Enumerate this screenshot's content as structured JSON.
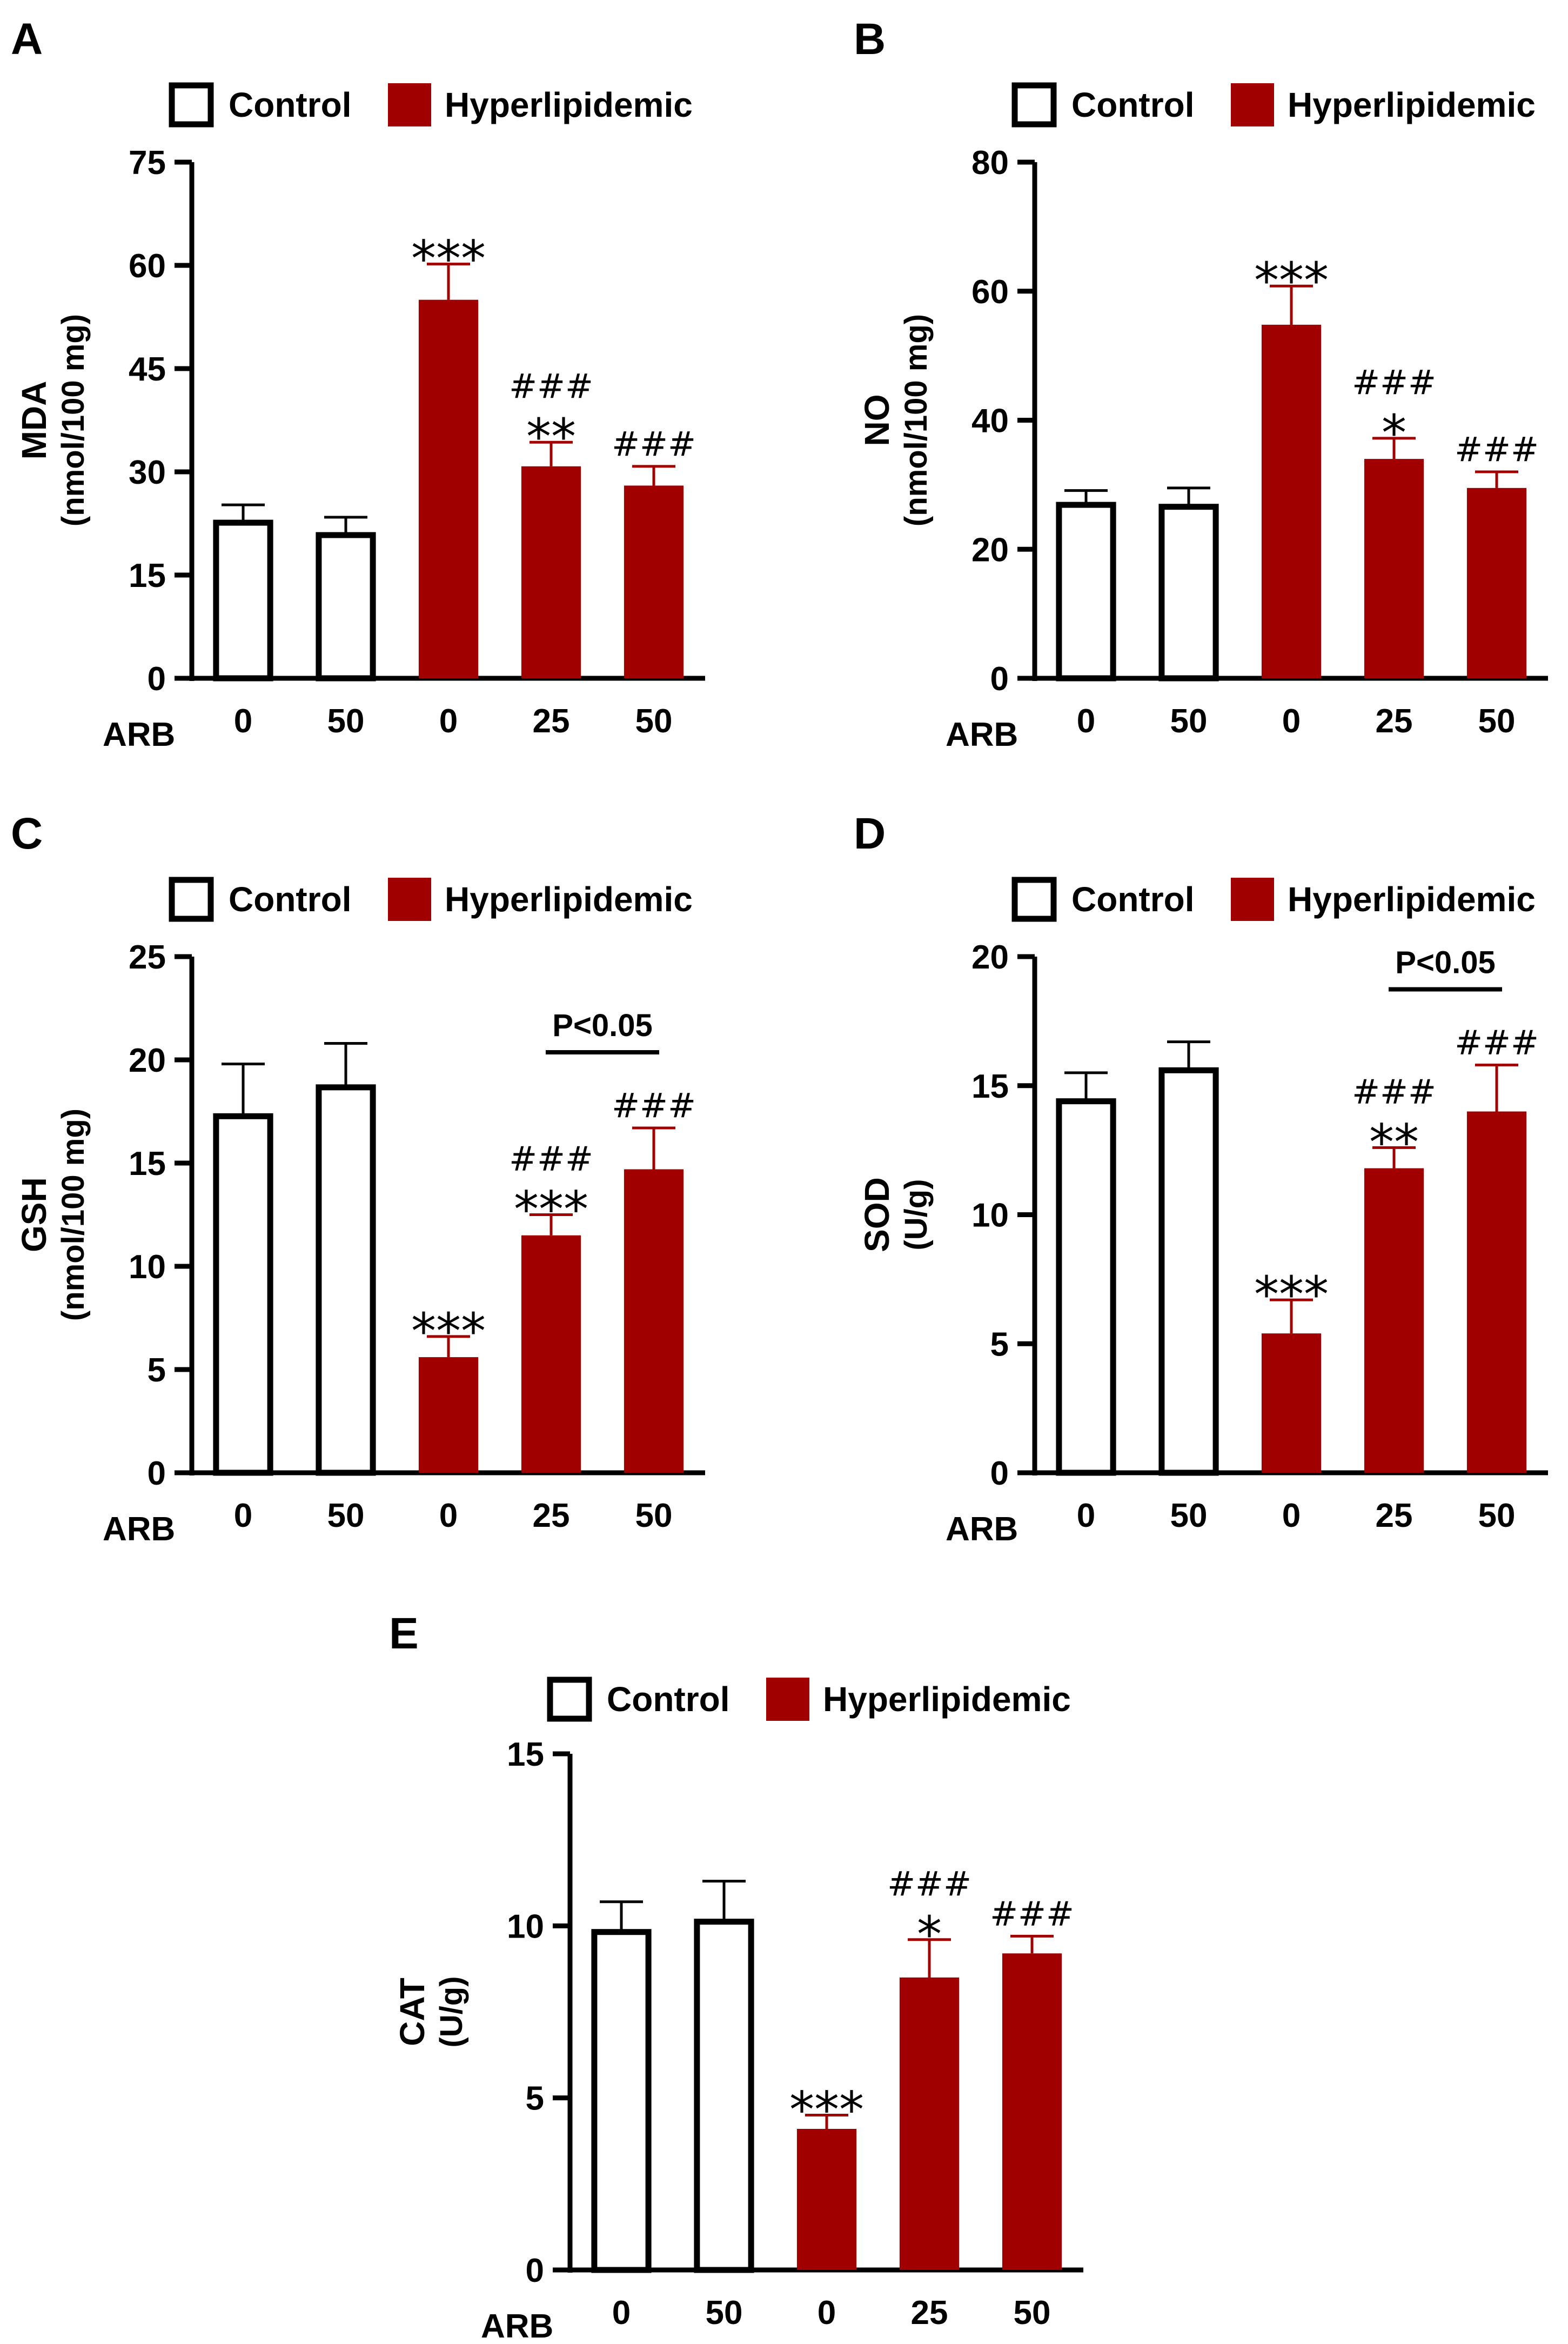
{
  "colors": {
    "control_fill": "#ffffff",
    "hyper_fill": "#a00000",
    "axis": "#000000"
  },
  "chart_data": [
    {
      "panel": "A",
      "type": "bar",
      "legend": [
        "Control",
        "Hyperlipidemic"
      ],
      "ylabel": "MDA",
      "ylabel2": "(nmol/100 mg)",
      "xlabel": "ARB",
      "categories": [
        "0",
        "50",
        "0",
        "25",
        "50"
      ],
      "groups": [
        "Control",
        "Control",
        "Hyperlipidemic",
        "Hyperlipidemic",
        "Hyperlipidemic"
      ],
      "values": [
        23,
        21.2,
        55,
        30.8,
        28
      ],
      "errors": [
        2.2,
        2.2,
        5.2,
        3.5,
        2.8
      ],
      "ylim": [
        0,
        75
      ],
      "yticks": [
        "0",
        "15",
        "30",
        "45",
        "60",
        "75"
      ],
      "significance": [
        [],
        [],
        [
          "***"
        ],
        [
          "**",
          "###"
        ],
        [
          "###"
        ]
      ],
      "bracket": null
    },
    {
      "panel": "B",
      "type": "bar",
      "legend": [
        "Control",
        "Hyperlipidemic"
      ],
      "ylabel": "NO",
      "ylabel2": "(nmol/100 mg)",
      "xlabel": "ARB",
      "categories": [
        "0",
        "50",
        "0",
        "25",
        "50"
      ],
      "groups": [
        "Control",
        "Control",
        "Hyperlipidemic",
        "Hyperlipidemic",
        "Hyperlipidemic"
      ],
      "values": [
        27.3,
        27,
        54.8,
        34,
        29.5
      ],
      "errors": [
        1.8,
        2.5,
        6,
        3.2,
        2.5
      ],
      "ylim": [
        0,
        80
      ],
      "yticks": [
        "0",
        "20",
        "40",
        "60",
        "80"
      ],
      "significance": [
        [],
        [],
        [
          "***"
        ],
        [
          "*",
          "###"
        ],
        [
          "###"
        ]
      ],
      "bracket": null
    },
    {
      "panel": "C",
      "type": "bar",
      "legend": [
        "Control",
        "Hyperlipidemic"
      ],
      "ylabel": "GSH",
      "ylabel2": "(nmol/100 mg)",
      "xlabel": "ARB",
      "categories": [
        "0",
        "50",
        "0",
        "25",
        "50"
      ],
      "groups": [
        "Control",
        "Control",
        "Hyperlipidemic",
        "Hyperlipidemic",
        "Hyperlipidemic"
      ],
      "values": [
        17.4,
        18.8,
        5.6,
        11.5,
        14.7
      ],
      "errors": [
        2.4,
        2,
        1,
        1,
        2
      ],
      "ylim": [
        0,
        25
      ],
      "yticks": [
        "0",
        "5",
        "10",
        "15",
        "20",
        "25"
      ],
      "significance": [
        [],
        [],
        [
          "***"
        ],
        [
          "***",
          "###"
        ],
        [
          "###"
        ]
      ],
      "bracket": {
        "from": 3,
        "to": 4,
        "label": "P<0.05"
      }
    },
    {
      "panel": "D",
      "type": "bar",
      "legend": [
        "Control",
        "Hyperlipidemic"
      ],
      "ylabel": "SOD",
      "ylabel2": "(U/g)",
      "xlabel": "ARB",
      "categories": [
        "0",
        "50",
        "0",
        "25",
        "50"
      ],
      "groups": [
        "Control",
        "Control",
        "Hyperlipidemic",
        "Hyperlipidemic",
        "Hyperlipidemic"
      ],
      "values": [
        14.5,
        15.7,
        5.4,
        11.8,
        14
      ],
      "errors": [
        1,
        1,
        1.3,
        0.8,
        1.8
      ],
      "ylim": [
        0,
        20
      ],
      "yticks": [
        "0",
        "5",
        "10",
        "15",
        "20"
      ],
      "significance": [
        [],
        [],
        [
          "***"
        ],
        [
          "**",
          "###"
        ],
        [
          "###"
        ]
      ],
      "bracket": {
        "from": 3,
        "to": 4,
        "label": "P<0.05"
      }
    },
    {
      "panel": "E",
      "type": "bar",
      "legend": [
        "Control",
        "Hyperlipidemic"
      ],
      "ylabel": "CAT",
      "ylabel2": "(U/g)",
      "xlabel": "ARB",
      "categories": [
        "0",
        "50",
        "0",
        "25",
        "50"
      ],
      "groups": [
        "Control",
        "Control",
        "Hyperlipidemic",
        "Hyperlipidemic",
        "Hyperlipidemic"
      ],
      "values": [
        9.9,
        10.2,
        4.1,
        8.5,
        9.2
      ],
      "errors": [
        0.8,
        1.1,
        0.4,
        1.1,
        0.5
      ],
      "ylim": [
        0,
        15
      ],
      "yticks": [
        "0",
        "5",
        "10",
        "15"
      ],
      "significance": [
        [],
        [],
        [
          "***"
        ],
        [
          "*",
          "###"
        ],
        [
          "###"
        ]
      ],
      "bracket": null
    }
  ]
}
